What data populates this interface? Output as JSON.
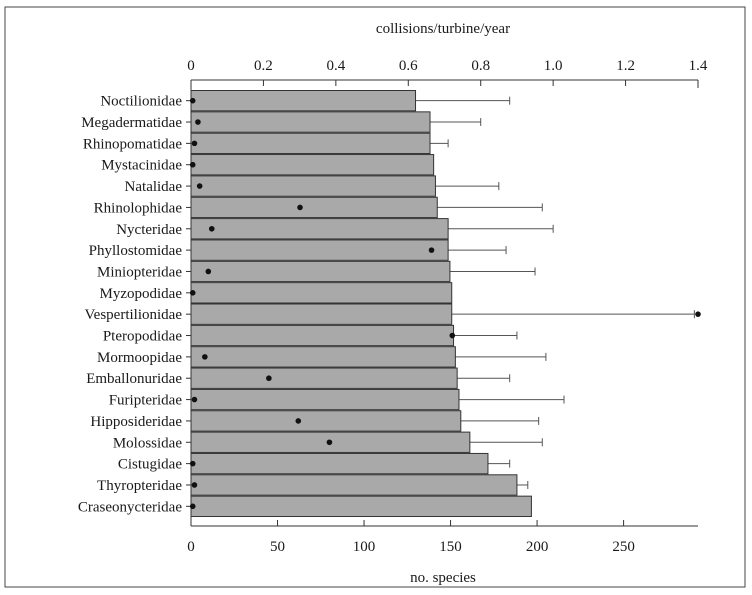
{
  "chart_data": {
    "type": "bar",
    "orientation": "horizontal",
    "top_axis": {
      "label": "collisions/turbine/year",
      "range": [
        0,
        1.4
      ],
      "ticks": [
        "0",
        "0.2",
        "0.4",
        "0.6",
        "0.8",
        "1.0",
        "1.2",
        "1.4"
      ]
    },
    "bottom_axis": {
      "label": "no. species",
      "range": [
        0,
        293
      ],
      "ticks": [
        "0",
        "50",
        "100",
        "150",
        "200",
        "250"
      ]
    },
    "colors": {
      "bar_fill": "#a9a9a9",
      "bar_stroke": "#333333",
      "point": "#111111"
    },
    "categories": [
      "Noctilionidae",
      "Megadermatidae",
      "Rhinopomatidae",
      "Mystacinidae",
      "Natalidae",
      "Rhinolophidae",
      "Nycteridae",
      "Phyllostomidae",
      "Miniopteridae",
      "Myzopodidae",
      "Vespertilionidae",
      "Pteropodidae",
      "Mormoopidae",
      "Emballonuridae",
      "Furipteridae",
      "Hipposideridae",
      "Molossidae",
      "Cistugidae",
      "Thyropteridae",
      "Craseonycteridae"
    ],
    "series": [
      {
        "axis": "top",
        "type": "bar_with_error",
        "values": [
          0.62,
          0.66,
          0.66,
          0.67,
          0.675,
          0.68,
          0.71,
          0.71,
          0.715,
          0.72,
          0.72,
          0.725,
          0.73,
          0.735,
          0.74,
          0.745,
          0.77,
          0.82,
          0.9,
          0.94
        ],
        "error_upper": [
          0.88,
          0.8,
          0.71,
          0.67,
          0.85,
          0.97,
          1.0,
          0.87,
          0.95,
          0.72,
          1.39,
          0.9,
          0.98,
          0.88,
          1.03,
          0.96,
          0.97,
          0.88,
          0.93,
          0.94
        ]
      },
      {
        "axis": "bottom",
        "type": "points",
        "values": [
          1,
          4,
          2,
          1,
          5,
          63,
          12,
          139,
          10,
          1,
          293,
          151,
          8,
          45,
          2,
          62,
          80,
          1,
          2,
          1
        ]
      }
    ]
  }
}
